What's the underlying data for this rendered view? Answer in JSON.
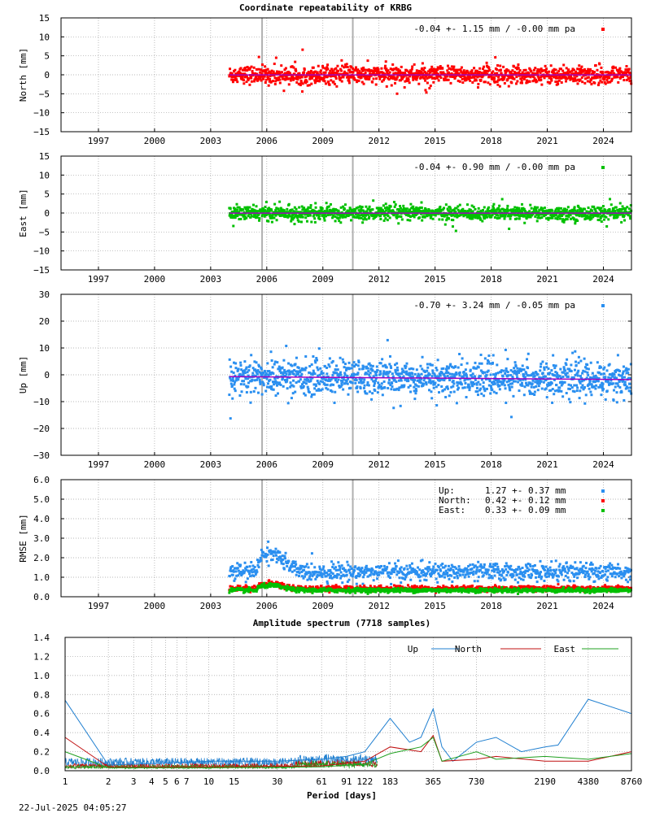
{
  "title": "Coordinate repeatability of KRBG",
  "timestamp": "22-Jul-2025 04:05:27",
  "colors": {
    "north": "#ff0000",
    "east": "#00c000",
    "up": "#2a8ff0",
    "trend": "#a000c0",
    "spec_up": "#1f7fd0",
    "spec_north": "#c01010",
    "spec_east": "#20a020",
    "vline": "#b0b0b0"
  },
  "chart_data": [
    {
      "type": "scatter",
      "id": "north",
      "ylabel": "North [mm]",
      "ylim": [
        -15,
        15
      ],
      "yticks": [
        -15,
        -10,
        -5,
        0,
        5,
        10,
        15
      ],
      "xlim": [
        1995,
        2025.5
      ],
      "xticks": [
        1997,
        2000,
        2003,
        2006,
        2009,
        2012,
        2015,
        2018,
        2021,
        2024
      ],
      "stats": "-0.04 +- 1.15 mm / -0.00 mm pa",
      "series": [
        {
          "key": "north",
          "start": 2004.0,
          "end": 2025.5,
          "mean": -0.04,
          "sd": 1.15,
          "trend_per_year": 0.0
        }
      ],
      "vertical_lines": [
        2005.75,
        2010.6
      ],
      "grid": true
    },
    {
      "type": "scatter",
      "id": "east",
      "ylabel": "East [mm]",
      "ylim": [
        -15,
        15
      ],
      "yticks": [
        -15,
        -10,
        -5,
        0,
        5,
        10,
        15
      ],
      "xlim": [
        1995,
        2025.5
      ],
      "xticks": [
        1997,
        2000,
        2003,
        2006,
        2009,
        2012,
        2015,
        2018,
        2021,
        2024
      ],
      "stats": "-0.04 +- 0.90 mm / -0.00 mm pa",
      "series": [
        {
          "key": "east",
          "start": 2004.0,
          "end": 2025.5,
          "mean": -0.04,
          "sd": 0.9,
          "trend_per_year": 0.0
        }
      ],
      "vertical_lines": [
        2005.75,
        2010.6
      ],
      "grid": true
    },
    {
      "type": "scatter",
      "id": "up",
      "ylabel": "Up [mm]",
      "ylim": [
        -30,
        30
      ],
      "yticks": [
        -30,
        -20,
        -10,
        0,
        10,
        20,
        30
      ],
      "xlim": [
        1995,
        2025.5
      ],
      "xticks": [
        1997,
        2000,
        2003,
        2006,
        2009,
        2012,
        2015,
        2018,
        2021,
        2024
      ],
      "stats": "-0.70 +- 3.24 mm / -0.05 mm pa",
      "series": [
        {
          "key": "up",
          "start": 2004.0,
          "end": 2025.5,
          "mean": -0.7,
          "sd": 3.24,
          "trend_per_year": -0.05
        }
      ],
      "vertical_lines": [
        2005.75,
        2010.6
      ],
      "grid": true
    },
    {
      "type": "scatter",
      "id": "rmse",
      "ylabel": "RMSE [mm]",
      "ylim": [
        0.0,
        6.0
      ],
      "yticks": [
        0.0,
        1.0,
        2.0,
        3.0,
        4.0,
        5.0,
        6.0
      ],
      "ytick_labels": [
        "0.0",
        "1.0",
        "2.0",
        "3.0",
        "4.0",
        "5.0",
        "6.0"
      ],
      "xlim": [
        1995,
        2025.5
      ],
      "xticks": [
        1997,
        2000,
        2003,
        2006,
        2009,
        2012,
        2015,
        2018,
        2021,
        2024
      ],
      "legend": [
        {
          "key": "up",
          "name": "Up:",
          "value": "1.27 +- 0.37 mm"
        },
        {
          "key": "north",
          "name": "North:",
          "value": "0.42 +- 0.12 mm"
        },
        {
          "key": "east",
          "name": "East:",
          "value": "0.33 +- 0.09 mm"
        }
      ],
      "series": [
        {
          "key": "up",
          "mean": 1.27,
          "sd": 0.37
        },
        {
          "key": "north",
          "mean": 0.42,
          "sd": 0.12
        },
        {
          "key": "east",
          "mean": 0.33,
          "sd": 0.09
        }
      ],
      "vertical_lines": [
        2005.75,
        2010.6
      ],
      "grid": true
    },
    {
      "type": "line",
      "id": "spectrum",
      "title": "Amplitude spectrum (7718 samples)",
      "xlabel": "Period [days]",
      "ylim": [
        0.0,
        1.4
      ],
      "yticks": [
        0.0,
        0.2,
        0.4,
        0.6,
        0.8,
        1.0,
        1.2,
        1.4
      ],
      "ytick_labels": [
        "0.0",
        "0.2",
        "0.4",
        "0.6",
        "0.8",
        "1.0",
        "1.2",
        "1.4"
      ],
      "xticks": [
        1,
        2,
        3,
        4,
        5,
        6,
        7,
        10,
        15,
        30,
        61,
        91,
        122,
        183,
        365,
        730,
        2190,
        4380,
        8760
      ],
      "legend": [
        "Up",
        "North",
        "East"
      ],
      "series": [
        {
          "name": "Up",
          "key": "spec_up",
          "points": [
            [
              1,
              0.74
            ],
            [
              2,
              0.06
            ],
            [
              5,
              0.08
            ],
            [
              10,
              0.1
            ],
            [
              30,
              0.1
            ],
            [
              61,
              0.12
            ],
            [
              91,
              0.15
            ],
            [
              122,
              0.2
            ],
            [
              183,
              0.55
            ],
            [
              250,
              0.3
            ],
            [
              300,
              0.35
            ],
            [
              365,
              0.65
            ],
            [
              420,
              0.25
            ],
            [
              500,
              0.1
            ],
            [
              730,
              0.3
            ],
            [
              1000,
              0.35
            ],
            [
              1500,
              0.2
            ],
            [
              2190,
              0.25
            ],
            [
              2700,
              0.27
            ],
            [
              4380,
              0.75
            ],
            [
              8760,
              0.6
            ]
          ]
        },
        {
          "name": "North",
          "key": "spec_north",
          "points": [
            [
              1,
              0.35
            ],
            [
              2,
              0.04
            ],
            [
              10,
              0.04
            ],
            [
              61,
              0.05
            ],
            [
              122,
              0.1
            ],
            [
              183,
              0.25
            ],
            [
              300,
              0.2
            ],
            [
              365,
              0.37
            ],
            [
              420,
              0.1
            ],
            [
              730,
              0.12
            ],
            [
              1000,
              0.15
            ],
            [
              2190,
              0.1
            ],
            [
              4380,
              0.1
            ],
            [
              8760,
              0.2
            ]
          ]
        },
        {
          "name": "East",
          "key": "spec_east",
          "points": [
            [
              1,
              0.2
            ],
            [
              2,
              0.03
            ],
            [
              10,
              0.03
            ],
            [
              61,
              0.04
            ],
            [
              122,
              0.07
            ],
            [
              183,
              0.18
            ],
            [
              300,
              0.25
            ],
            [
              365,
              0.35
            ],
            [
              420,
              0.1
            ],
            [
              730,
              0.2
            ],
            [
              1000,
              0.12
            ],
            [
              2190,
              0.15
            ],
            [
              4380,
              0.12
            ],
            [
              8760,
              0.18
            ]
          ]
        }
      ],
      "grid": true
    }
  ]
}
